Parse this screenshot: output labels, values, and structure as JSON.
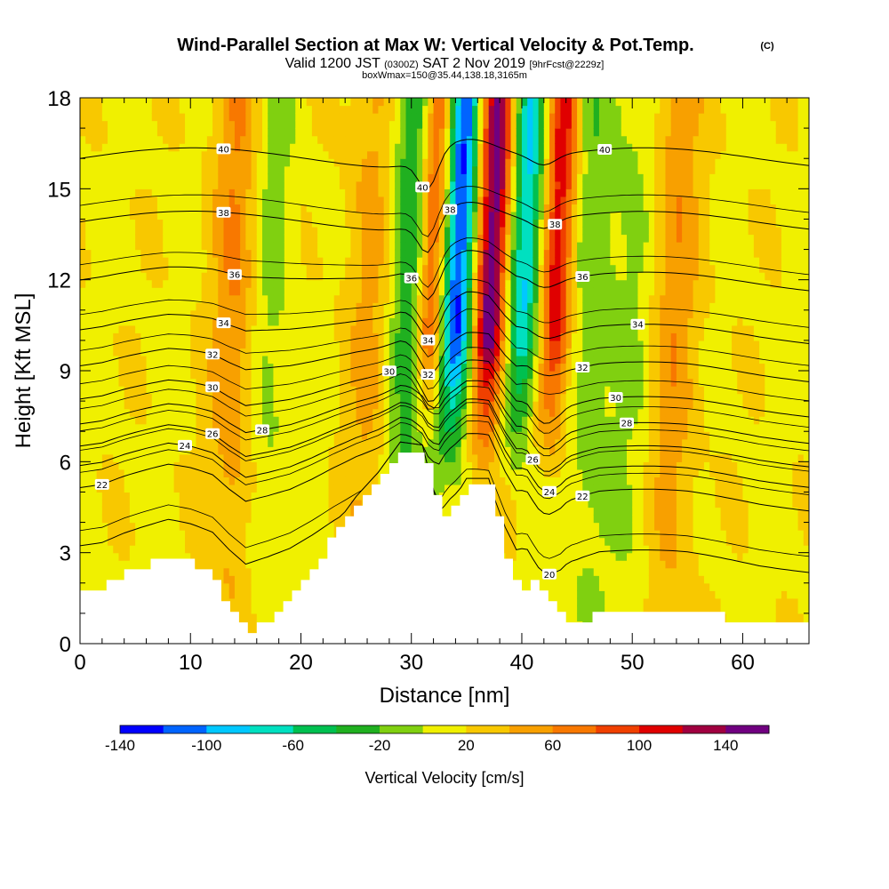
{
  "chart_data": {
    "type": "heatmap",
    "title": "Wind-Parallel Section at Max W: Vertical Velocity & Pot.Temp.",
    "copyright": "(C)",
    "subtitle_main": "Valid 1200 JST ",
    "subtitle_utc": "(0300Z)",
    "subtitle_date": " SAT 2 Nov 2019 ",
    "subtitle_fcst": "[9hrFcst@2229z]",
    "subtitle_box": "boxWmax=150@35.44,138.18,3165m",
    "xlabel": "Distance [nm]",
    "ylabel": "Height [Kft MSL]",
    "xlim": [
      0,
      66
    ],
    "ylim": [
      0,
      18
    ],
    "x_ticks": [
      0,
      10,
      20,
      30,
      40,
      50,
      60
    ],
    "y_ticks": [
      0,
      3,
      6,
      9,
      12,
      15,
      18
    ],
    "colorbar": {
      "label": "Vertical Velocity [cm/s]",
      "ticks": [
        "-140",
        "-100",
        "-60",
        "-20",
        "20",
        "60",
        "100",
        "140"
      ],
      "colors": [
        "#0000ff",
        "#0064ff",
        "#00c8ff",
        "#00e0c0",
        "#00c050",
        "#20b020",
        "#80d010",
        "#f0f000",
        "#f8c800",
        "#f8a000",
        "#f87800",
        "#f04000",
        "#e00000",
        "#a00040",
        "#700080"
      ]
    },
    "terrain_kft": [
      [
        0,
        1.9
      ],
      [
        2,
        1.9
      ],
      [
        4,
        2.3
      ],
      [
        6,
        2.6
      ],
      [
        8,
        2.9
      ],
      [
        10,
        2.6
      ],
      [
        12,
        2.1
      ],
      [
        13.5,
        1.1
      ],
      [
        15,
        0.3
      ],
      [
        17,
        0.9
      ],
      [
        19,
        1.6
      ],
      [
        21,
        2.6
      ],
      [
        23,
        3.7
      ],
      [
        25,
        4.7
      ],
      [
        27,
        5.5
      ],
      [
        29,
        6.5
      ],
      [
        31,
        6.4
      ],
      [
        32.5,
        4.2
      ],
      [
        34,
        4.7
      ],
      [
        35,
        5.3
      ],
      [
        37,
        5.3
      ],
      [
        38.5,
        2.8
      ],
      [
        39.5,
        1.6
      ],
      [
        40.5,
        2.1
      ],
      [
        42,
        1.6
      ],
      [
        43.5,
        0.7
      ],
      [
        45,
        0.7
      ],
      [
        47,
        1.0
      ],
      [
        55,
        1.0
      ],
      [
        61.5,
        0.7
      ],
      [
        66,
        0.7
      ]
    ],
    "updraft_columns": [
      {
        "x": 31.0,
        "w": 110
      },
      {
        "x": 36.5,
        "w": 140
      },
      {
        "x": 42.5,
        "w": 100
      },
      {
        "x": 14.0,
        "w": 50
      },
      {
        "x": 53.5,
        "w": 40
      },
      {
        "x": 26.0,
        "w": 30
      }
    ],
    "downdraft_columns": [
      {
        "x": 33.5,
        "w": -140
      },
      {
        "x": 39.5,
        "w": -100
      },
      {
        "x": 30.2,
        "w": -70
      },
      {
        "x": 16.5,
        "w": -30
      },
      {
        "x": 46.0,
        "w": -30
      },
      {
        "x": 50.0,
        "w": -20
      }
    ],
    "theta_isentropes": [
      {
        "theta": "20",
        "base_kft": 2.2,
        "lx": 42.5
      },
      {
        "theta": "22",
        "base_kft": 4.3,
        "lx": 2.0,
        "lx2": 45.5
      },
      {
        "theta": "24",
        "base_kft": 5.1,
        "lx": 9.5,
        "lx2": 42.5
      },
      {
        "theta": "26",
        "base_kft": 5.8,
        "lx": 12.0,
        "lx2": 41.0
      },
      {
        "theta": "28",
        "base_kft": 6.6,
        "lx": 16.5,
        "lx2": 49.5
      },
      {
        "theta": "30",
        "base_kft": 7.5,
        "lx": 12.0,
        "lx2": 28.0,
        "lx3": 48.5
      },
      {
        "theta": "32",
        "base_kft": 8.7,
        "lx": 12.0,
        "lx2": 31.5,
        "lx3": 45.5
      },
      {
        "theta": "34",
        "base_kft": 10.0,
        "lx": 13.0,
        "lx2": 31.5,
        "lx3": 50.5
      },
      {
        "theta": "36",
        "base_kft": 11.8,
        "lx": 14.0,
        "lx2": 30.0,
        "lx3": 45.5
      },
      {
        "theta": "38",
        "base_kft": 13.9,
        "lx": 13.0,
        "lx2": 33.5,
        "lx3": 43.0
      },
      {
        "theta": "40",
        "base_kft": 16.0,
        "lx": 13.0,
        "lx2": 31.0,
        "lx3": 47.5
      }
    ]
  }
}
